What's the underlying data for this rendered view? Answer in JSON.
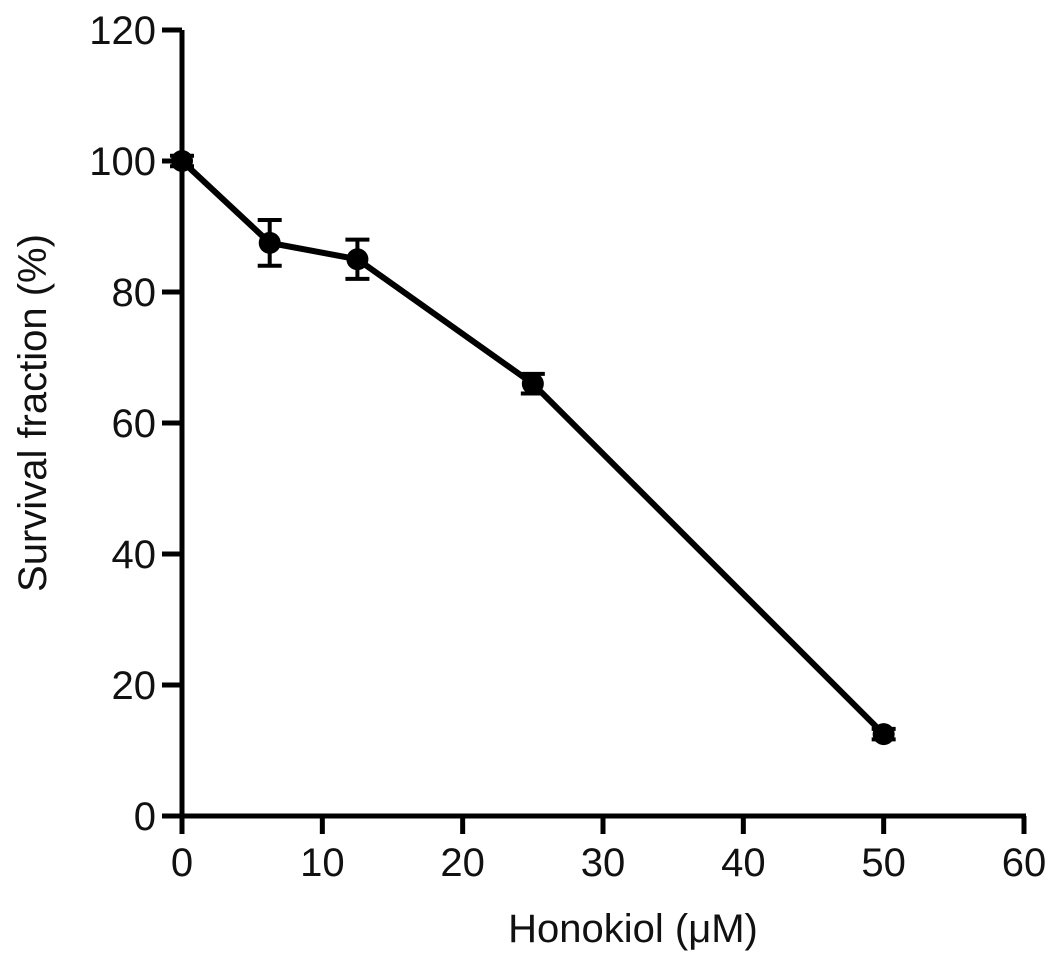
{
  "chart_data": {
    "type": "line",
    "title": "",
    "xlabel": "Honokiol (μM)",
    "ylabel": "Survival fraction (%)",
    "xlim": [
      0,
      60
    ],
    "ylim": [
      0,
      120
    ],
    "x_ticks": [
      "0",
      "10",
      "20",
      "30",
      "40",
      "50",
      "60"
    ],
    "y_ticks": [
      "0",
      "20",
      "40",
      "60",
      "80",
      "100",
      "120"
    ],
    "grid": false,
    "legend": "none",
    "series": [
      {
        "x": [
          0,
          6.25,
          12.5,
          25,
          50
        ],
        "y": [
          100,
          87.5,
          85,
          66,
          12.5
        ],
        "error": [
          0.8,
          3.5,
          3.0,
          1.5,
          0.8
        ]
      }
    ],
    "colors": {
      "line": "#000000",
      "marker": "#000000",
      "axis": "#000000"
    }
  }
}
